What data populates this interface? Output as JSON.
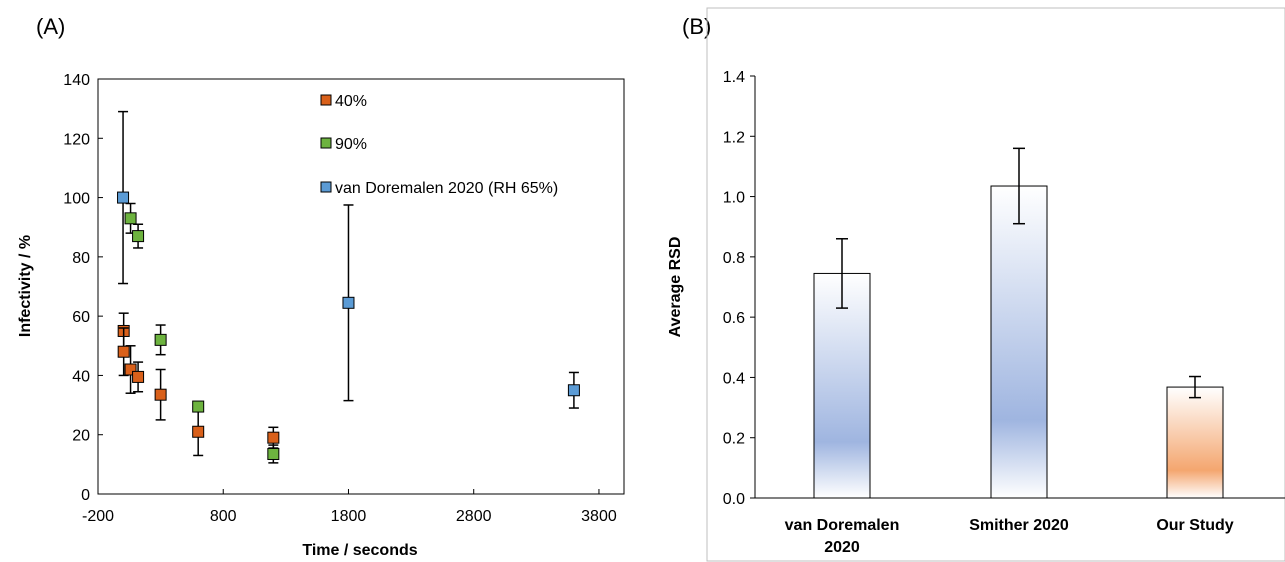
{
  "panels": {
    "a_label": "(A)",
    "b_label": "(B)"
  },
  "colors": {
    "40%": "#d9601a",
    "90%": "#6db33f",
    "van Doremalen 2020 (RH 65%)": "#5b9bd5",
    "bar_blue_edge": "#ffffff",
    "bar_blue_mid": "#9fb5e0",
    "bar_orange_edge": "#ffffff",
    "bar_orange_mid": "#f4a66f"
  },
  "chart_data": [
    {
      "type": "scatter",
      "xlabel": "Time / seconds",
      "ylabel": "Infectivity / %",
      "xlim": [
        -200,
        4000
      ],
      "ylim": [
        0,
        140
      ],
      "xticks": [
        -200,
        800,
        1800,
        2800,
        3800
      ],
      "yticks": [
        0,
        20,
        40,
        60,
        80,
        100,
        120,
        140
      ],
      "grid": false,
      "legend_position": "top-right",
      "series": [
        {
          "name": "40%",
          "points": [
            {
              "x": 5,
              "y": 55,
              "err_lo": 8,
              "err_hi": 6
            },
            {
              "x": 5,
              "y": 48,
              "err_lo": 8,
              "err_hi": 8
            },
            {
              "x": 60,
              "y": 42,
              "err_lo": 8,
              "err_hi": 8
            },
            {
              "x": 120,
              "y": 39.5,
              "err_lo": 5,
              "err_hi": 5
            },
            {
              "x": 300,
              "y": 33.5,
              "err_lo": 8.5,
              "err_hi": 8.5
            },
            {
              "x": 600,
              "y": 21,
              "err_lo": 8,
              "err_hi": 8
            },
            {
              "x": 1200,
              "y": 19,
              "err_lo": 3.5,
              "err_hi": 3.5
            }
          ]
        },
        {
          "name": "90%",
          "points": [
            {
              "x": 60,
              "y": 93,
              "err_lo": 5,
              "err_hi": 5
            },
            {
              "x": 120,
              "y": 87,
              "err_lo": 4,
              "err_hi": 4
            },
            {
              "x": 300,
              "y": 52,
              "err_lo": 5,
              "err_hi": 5
            },
            {
              "x": 600,
              "y": 29.5,
              "err_lo": 0,
              "err_hi": 0
            },
            {
              "x": 1200,
              "y": 13.5,
              "err_lo": 3,
              "err_hi": 3
            }
          ]
        },
        {
          "name": "van Doremalen 2020 (RH 65%)",
          "points": [
            {
              "x": 0,
              "y": 100,
              "err_lo": 29,
              "err_hi": 29
            },
            {
              "x": 1800,
              "y": 64.5,
              "err_lo": 33,
              "err_hi": 33
            },
            {
              "x": 3600,
              "y": 35,
              "err_lo": 6,
              "err_hi": 6
            }
          ]
        }
      ]
    },
    {
      "type": "bar",
      "xlabel": "",
      "ylabel": "Average RSD",
      "ylim": [
        0,
        1.4
      ],
      "yticks": [
        "0.0",
        "0.2",
        "0.4",
        "0.6",
        "0.8",
        "1.0",
        "1.2",
        "1.4"
      ],
      "grid": false,
      "categories": [
        {
          "line1": "van Doremalen",
          "line2": "2020"
        },
        {
          "line1": "Smither 2020",
          "line2": ""
        },
        {
          "line1": "Our Study",
          "line2": ""
        }
      ],
      "values": [
        0.745,
        1.035,
        0.368
      ],
      "errors": [
        0.115,
        0.125,
        0.035
      ],
      "fill": [
        "blue",
        "blue",
        "orange"
      ]
    }
  ]
}
